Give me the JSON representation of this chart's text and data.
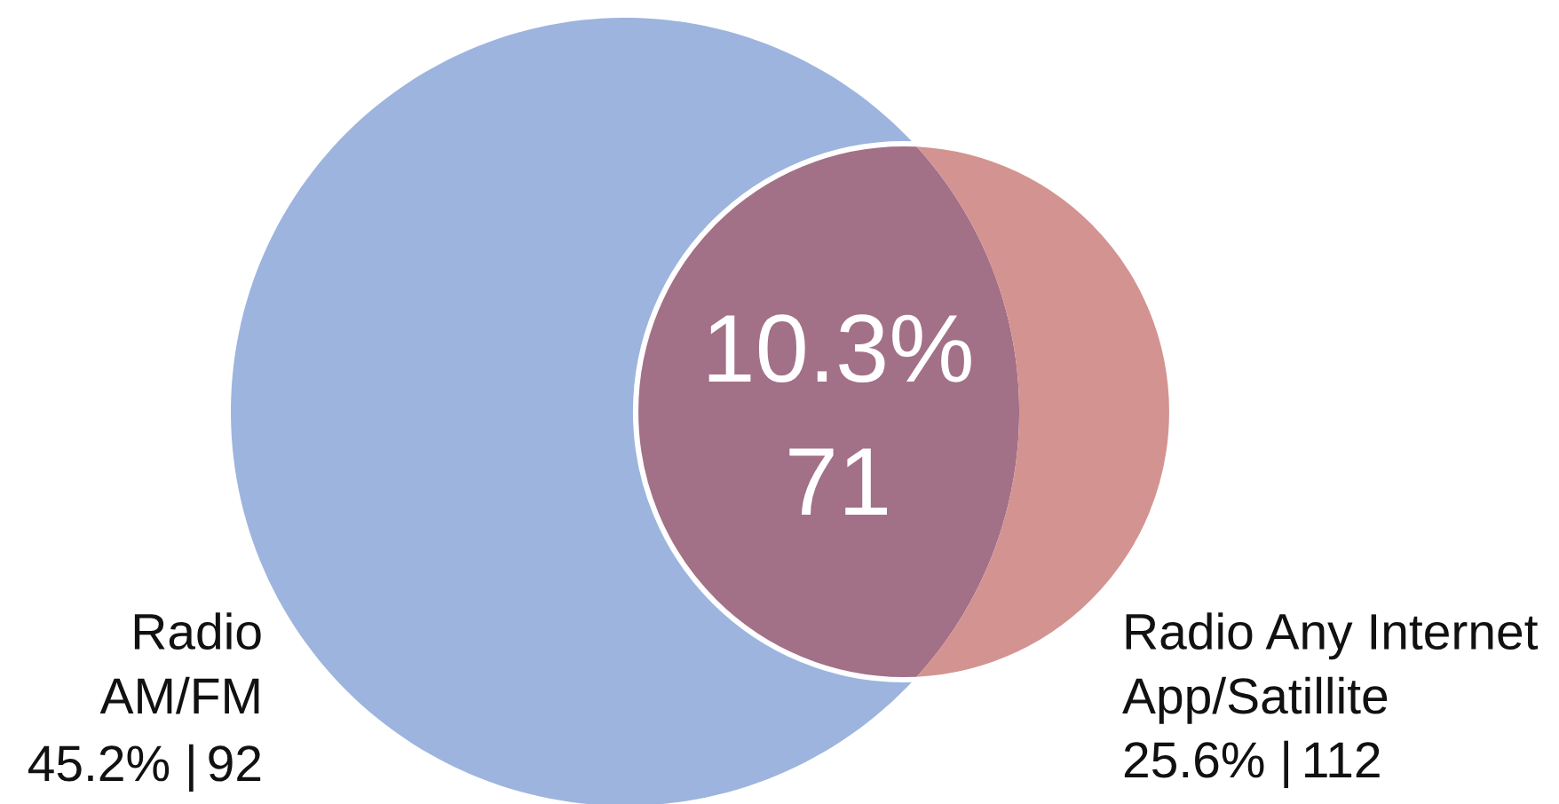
{
  "chart_data": {
    "type": "other",
    "categories": [
      "Radio\nAM/FM",
      null,
      "Radio Any Internet\nApp/Satillite"
    ],
    "colors": [
      "#9db4de",
      "#a27087",
      "#d39391"
    ],
    "series": [
      {
        "values": [
          45.2,
          null,
          25.6
        ],
        "value_labels": [
          "45.2% |",
          null,
          "25.6% |"
        ]
      },
      {
        "values": [
          92,
          null,
          112
        ],
        "value_labels": [
          "92",
          null,
          "112"
        ]
      }
    ],
    "annotations": [
      "10.3%",
      "71"
    ]
  }
}
